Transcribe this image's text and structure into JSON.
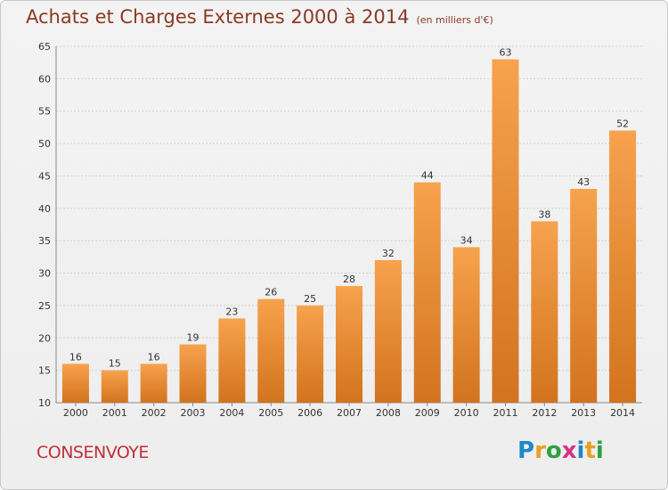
{
  "title": "Achats et Charges Externes 2000 à 2014",
  "unit": "(en milliers d'€)",
  "commune": "CONSENVOYE",
  "brand": "Proxiti",
  "colors": {
    "bar_light": "#f7a24d",
    "bar_dark": "#d2731f",
    "title": "#8a3a22",
    "commune": "#c0303a"
  },
  "chart_data": {
    "type": "bar",
    "title": "Achats et Charges Externes 2000 à 2014",
    "categories": [
      "2000",
      "2001",
      "2002",
      "2003",
      "2004",
      "2005",
      "2006",
      "2007",
      "2008",
      "2009",
      "2010",
      "2011",
      "2012",
      "2013",
      "2014"
    ],
    "values": [
      16,
      15,
      16,
      19,
      23,
      26,
      25,
      28,
      32,
      44,
      34,
      63,
      38,
      43,
      52
    ],
    "ylim": [
      10,
      65
    ],
    "yticks": [
      10,
      15,
      20,
      25,
      30,
      35,
      40,
      45,
      50,
      55,
      60,
      65
    ],
    "grid": true,
    "xlabel": "",
    "ylabel": ""
  }
}
